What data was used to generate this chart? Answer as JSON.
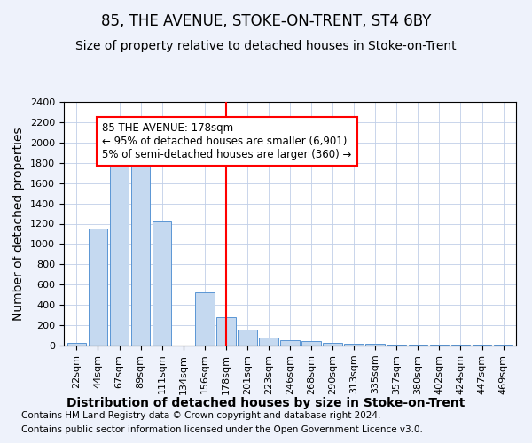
{
  "title": "85, THE AVENUE, STOKE-ON-TRENT, ST4 6BY",
  "subtitle": "Size of property relative to detached houses in Stoke-on-Trent",
  "xlabel": "Distribution of detached houses by size in Stoke-on-Trent",
  "ylabel": "Number of detached properties",
  "categories": [
    "22sqm",
    "44sqm",
    "67sqm",
    "89sqm",
    "111sqm",
    "134sqm",
    "156sqm",
    "178sqm",
    "201sqm",
    "223sqm",
    "246sqm",
    "268sqm",
    "290sqm",
    "313sqm",
    "335sqm",
    "357sqm",
    "380sqm",
    "402sqm",
    "424sqm",
    "447sqm",
    "469sqm"
  ],
  "values": [
    25,
    1150,
    1950,
    1850,
    1220,
    0,
    520,
    275,
    155,
    80,
    55,
    45,
    30,
    15,
    15,
    5,
    5,
    5,
    5,
    5,
    5
  ],
  "bar_color": "#c5d9f0",
  "bar_edge_color": "#5a96d4",
  "vline_x_index": 7,
  "vline_color": "red",
  "annotation_text": "85 THE AVENUE: 178sqm\n← 95% of detached houses are smaller (6,901)\n5% of semi-detached houses are larger (360) →",
  "annotation_box_color": "white",
  "annotation_box_edge": "red",
  "ylim": [
    0,
    2400
  ],
  "yticks": [
    0,
    200,
    400,
    600,
    800,
    1000,
    1200,
    1400,
    1600,
    1800,
    2000,
    2200,
    2400
  ],
  "footer1": "Contains HM Land Registry data © Crown copyright and database right 2024.",
  "footer2": "Contains public sector information licensed under the Open Government Licence v3.0.",
  "bg_color": "#eef2fb",
  "plot_bg_color": "#ffffff",
  "title_fontsize": 12,
  "subtitle_fontsize": 10,
  "axis_label_fontsize": 10,
  "tick_fontsize": 8,
  "footer_fontsize": 7.5,
  "annotation_fontsize": 8.5
}
